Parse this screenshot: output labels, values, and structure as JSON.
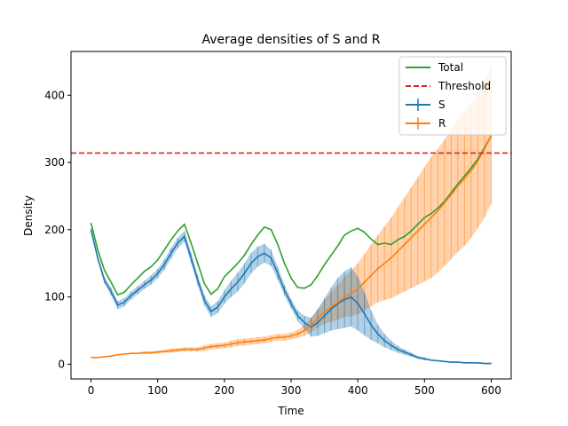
{
  "chart_data": {
    "type": "line",
    "title": "Average densities of S and R",
    "xlabel": "Time",
    "ylabel": "Density",
    "xlim": [
      -30,
      630
    ],
    "ylim": [
      -22,
      465
    ],
    "xticks": [
      0,
      100,
      200,
      300,
      400,
      500,
      600
    ],
    "yticks": [
      0,
      100,
      200,
      300,
      400
    ],
    "grid": false,
    "legend_position": "top-right",
    "threshold": {
      "name": "Threshold",
      "value": 314,
      "color": "#d62728",
      "style": "dashed"
    },
    "series": [
      {
        "name": "Total",
        "color": "#2ca02c",
        "x": [
          0,
          10,
          20,
          30,
          40,
          50,
          60,
          70,
          80,
          90,
          100,
          110,
          120,
          130,
          140,
          150,
          160,
          170,
          180,
          190,
          200,
          210,
          220,
          230,
          240,
          250,
          260,
          270,
          280,
          290,
          300,
          310,
          320,
          330,
          340,
          350,
          360,
          370,
          380,
          390,
          400,
          410,
          420,
          430,
          440,
          450,
          460,
          470,
          480,
          490,
          500,
          510,
          520,
          530,
          540,
          550,
          560,
          570,
          580,
          590,
          600
        ],
        "values": [
          210,
          170,
          140,
          122,
          103,
          107,
          118,
          128,
          138,
          145,
          155,
          170,
          185,
          198,
          208,
          180,
          150,
          120,
          104,
          112,
          130,
          140,
          150,
          162,
          178,
          192,
          204,
          200,
          178,
          150,
          128,
          114,
          113,
          118,
          132,
          148,
          162,
          176,
          192,
          198,
          202,
          196,
          186,
          178,
          180,
          178,
          185,
          190,
          198,
          208,
          218,
          224,
          232,
          242,
          255,
          268,
          280,
          292,
          305,
          322,
          340
        ]
      },
      {
        "name": "S",
        "color": "#1f77b4",
        "x": [
          0,
          10,
          20,
          30,
          40,
          50,
          60,
          70,
          80,
          90,
          100,
          110,
          120,
          130,
          140,
          150,
          160,
          170,
          180,
          190,
          200,
          210,
          220,
          230,
          240,
          250,
          260,
          270,
          280,
          290,
          300,
          310,
          320,
          330,
          340,
          350,
          360,
          370,
          380,
          390,
          400,
          410,
          420,
          430,
          440,
          450,
          460,
          470,
          480,
          490,
          500,
          510,
          520,
          530,
          540,
          550,
          560,
          570,
          580,
          590,
          600
        ],
        "values": [
          200,
          158,
          125,
          108,
          88,
          92,
          102,
          110,
          118,
          125,
          135,
          148,
          165,
          180,
          190,
          158,
          125,
          95,
          78,
          85,
          100,
          112,
          122,
          135,
          150,
          160,
          165,
          158,
          135,
          110,
          90,
          72,
          62,
          55,
          62,
          72,
          82,
          90,
          96,
          100,
          90,
          75,
          58,
          45,
          35,
          28,
          22,
          18,
          14,
          10,
          8,
          6,
          5,
          4,
          3,
          3,
          2,
          2,
          2,
          1,
          1
        ],
        "error": [
          2,
          4,
          5,
          6,
          6,
          6,
          6,
          6,
          6,
          7,
          7,
          8,
          8,
          8,
          8,
          8,
          8,
          8,
          8,
          9,
          10,
          12,
          14,
          15,
          15,
          15,
          14,
          12,
          10,
          8,
          7,
          8,
          10,
          14,
          20,
          26,
          32,
          38,
          42,
          44,
          40,
          32,
          22,
          14,
          10,
          7,
          5,
          4,
          3,
          2,
          2,
          1,
          1,
          1,
          1,
          1,
          1,
          1,
          1,
          1,
          1
        ]
      },
      {
        "name": "R",
        "color": "#ff7f0e",
        "x": [
          0,
          10,
          20,
          30,
          40,
          50,
          60,
          70,
          80,
          90,
          100,
          110,
          120,
          130,
          140,
          150,
          160,
          170,
          180,
          190,
          200,
          210,
          220,
          230,
          240,
          250,
          260,
          270,
          280,
          290,
          300,
          310,
          320,
          330,
          340,
          350,
          360,
          370,
          380,
          390,
          400,
          410,
          420,
          430,
          440,
          450,
          460,
          470,
          480,
          490,
          500,
          510,
          520,
          530,
          540,
          550,
          560,
          570,
          580,
          590,
          600
        ],
        "values": [
          10,
          10,
          11,
          12,
          14,
          15,
          16,
          16,
          17,
          17,
          18,
          19,
          20,
          21,
          22,
          22,
          22,
          24,
          26,
          27,
          28,
          30,
          32,
          33,
          34,
          35,
          36,
          38,
          40,
          40,
          42,
          45,
          50,
          58,
          68,
          78,
          85,
          92,
          100,
          105,
          112,
          122,
          132,
          142,
          150,
          158,
          168,
          178,
          188,
          198,
          208,
          218,
          228,
          240,
          252,
          265,
          276,
          288,
          302,
          320,
          340
        ],
        "error": [
          1,
          1,
          1,
          1,
          1,
          1,
          1,
          1,
          2,
          2,
          2,
          2,
          3,
          3,
          3,
          3,
          3,
          4,
          4,
          4,
          4,
          5,
          5,
          5,
          5,
          5,
          5,
          5,
          5,
          5,
          5,
          6,
          8,
          10,
          14,
          18,
          22,
          26,
          30,
          34,
          38,
          42,
          46,
          50,
          55,
          60,
          65,
          70,
          75,
          80,
          85,
          90,
          92,
          94,
          96,
          98,
          100,
          100,
          100,
          102,
          102
        ]
      }
    ]
  }
}
